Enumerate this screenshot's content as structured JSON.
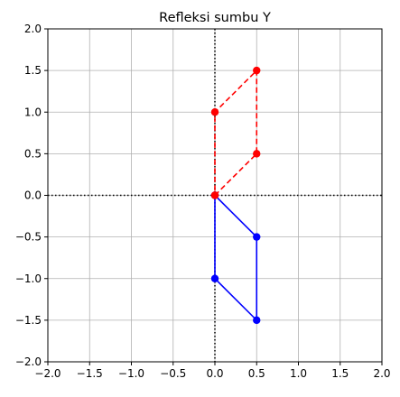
{
  "chart_data": {
    "type": "line",
    "title": "Refleksi sumbu Y",
    "xlabel": "",
    "ylabel": "",
    "xlim": [
      -2.0,
      2.0
    ],
    "ylim": [
      -2.0,
      2.0
    ],
    "grid": true,
    "x_ticks": [
      -2.0,
      -1.5,
      -1.0,
      -0.5,
      0.0,
      0.5,
      1.0,
      1.5,
      2.0
    ],
    "y_ticks": [
      -2.0,
      -1.5,
      -1.0,
      -0.5,
      0.0,
      0.5,
      1.0,
      1.5,
      2.0
    ],
    "x_tick_labels": [
      "−2.0",
      "−1.5",
      "−1.0",
      "−0.5",
      "0.0",
      "0.5",
      "1.0",
      "1.5",
      "2.0"
    ],
    "y_tick_labels": [
      "−2.0",
      "−1.5",
      "−1.0",
      "−0.5",
      "0.0",
      "0.5",
      "1.0",
      "1.5",
      "2.0"
    ],
    "reference_lines": [
      {
        "orientation": "horizontal",
        "value": 0.0,
        "style": "dotted",
        "color": "#000000"
      },
      {
        "orientation": "vertical",
        "value": 0.0,
        "style": "dotted",
        "color": "#000000"
      }
    ],
    "series": [
      {
        "style": "solid",
        "marker": "circle",
        "color": "#0000ff",
        "x": [
          0.0,
          0.5,
          0.5,
          0.0,
          0.0
        ],
        "y": [
          0.0,
          -0.5,
          -1.5,
          -1.0,
          0.0
        ]
      },
      {
        "style": "dashed",
        "marker": "circle",
        "color": "#ff0000",
        "x": [
          0.0,
          0.5,
          0.5,
          0.0,
          0.0
        ],
        "y": [
          0.0,
          0.5,
          1.5,
          1.0,
          0.0
        ]
      }
    ]
  },
  "colors": {
    "grid": "#b0b0b0",
    "axes": "#000000"
  }
}
